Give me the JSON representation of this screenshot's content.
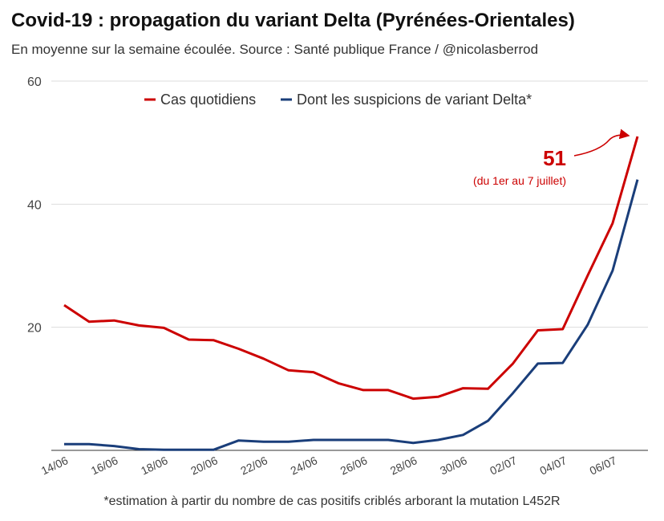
{
  "chart_data": {
    "type": "line",
    "title": "Covid-19 : propagation du variant Delta (Pyrénées-Orientales)",
    "subtitle": "En moyenne sur la semaine écoulée. Source : Santé publique France / @nicolasberrod",
    "footnote": "*estimation à partir du nombre de cas positifs criblés arborant la mutation L452R",
    "xlabel": "",
    "ylabel": "",
    "ylim": [
      0,
      60
    ],
    "yticks": [
      20,
      40,
      60
    ],
    "xticklabels": [
      "14/06",
      "16/06",
      "18/06",
      "20/06",
      "22/06",
      "24/06",
      "26/06",
      "28/06",
      "30/06",
      "02/07",
      "04/07",
      "06/07"
    ],
    "legend": "top-right",
    "colors": {
      "cas": "#cc0000",
      "delta": "#1a3e7a"
    },
    "series": [
      {
        "name": "Cas quotidiens",
        "values": [
          23.6,
          20.9,
          21.1,
          20.3,
          19.9,
          18.0,
          17.9,
          16.5,
          14.9,
          13.0,
          12.7,
          10.9,
          9.8,
          9.8,
          8.4,
          8.7,
          10.1,
          10.0,
          14.1,
          19.5,
          19.7,
          28.4,
          36.9,
          51
        ]
      },
      {
        "name": "Dont les suspicions de variant Delta*",
        "values": [
          1.0,
          1.0,
          0.7,
          0.2,
          0.1,
          0.1,
          0.1,
          1.6,
          1.4,
          1.4,
          1.7,
          1.7,
          1.7,
          1.7,
          1.2,
          1.7,
          2.5,
          4.8,
          9.3,
          14.1,
          14.2,
          20.4,
          29.2,
          44.0
        ]
      }
    ],
    "annotation": {
      "value": "51",
      "text": "(du 1er au 7 juillet)"
    }
  }
}
